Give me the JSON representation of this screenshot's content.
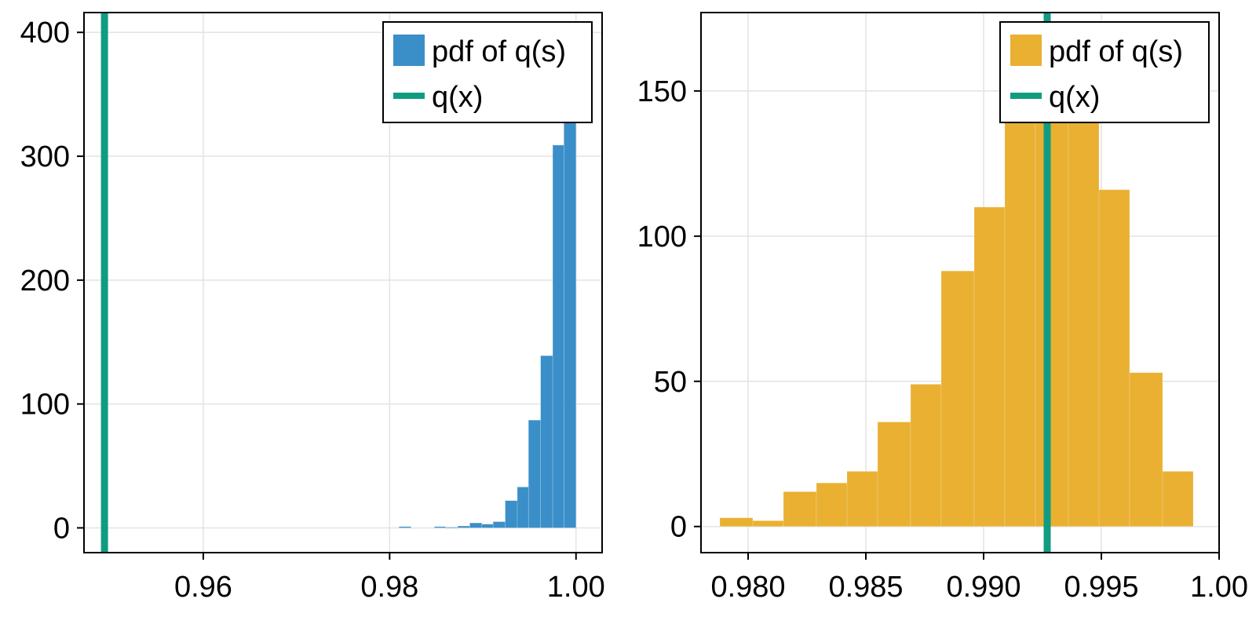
{
  "chart_data": [
    {
      "type": "histogram",
      "title": "",
      "xlabel": "",
      "ylabel": "",
      "xlim": [
        0.9472,
        1.0028
      ],
      "ylim": [
        -20,
        416
      ],
      "grid": true,
      "legend_position": "top-right",
      "x_ticks": [
        0.96,
        0.98,
        1.0
      ],
      "x_tick_labels": [
        "0.96",
        "0.98",
        "1.00"
      ],
      "y_ticks": [
        0,
        100,
        200,
        300,
        400
      ],
      "y_tick_labels": [
        "0",
        "100",
        "200",
        "300",
        "400"
      ],
      "bins": [
        {
          "x0": 0.981,
          "x1": 0.9823,
          "value": 1
        },
        {
          "x0": 0.9848,
          "x1": 0.986,
          "value": 1
        },
        {
          "x0": 0.986,
          "x1": 0.9873,
          "value": 0.5
        },
        {
          "x0": 0.9873,
          "x1": 0.9886,
          "value": 1.5
        },
        {
          "x0": 0.9886,
          "x1": 0.9899,
          "value": 4
        },
        {
          "x0": 0.9899,
          "x1": 0.9911,
          "value": 3
        },
        {
          "x0": 0.9911,
          "x1": 0.9924,
          "value": 5
        },
        {
          "x0": 0.9924,
          "x1": 0.9937,
          "value": 22
        },
        {
          "x0": 0.9937,
          "x1": 0.9949,
          "value": 33
        },
        {
          "x0": 0.9949,
          "x1": 0.9962,
          "value": 87
        },
        {
          "x0": 0.9962,
          "x1": 0.9975,
          "value": 139
        },
        {
          "x0": 0.9975,
          "x1": 0.9987,
          "value": 309
        },
        {
          "x0": 0.9987,
          "x1": 1.0,
          "value": 330
        }
      ],
      "vline": {
        "x": 0.9494
      },
      "series": [
        {
          "name": "pdf of q(s)",
          "kind": "hist",
          "color": "#3a8fc8"
        },
        {
          "name": "q(x)",
          "kind": "vline",
          "color": "#119c82"
        }
      ]
    },
    {
      "type": "histogram",
      "title": "",
      "xlabel": "",
      "ylabel": "",
      "xlim": [
        0.978,
        1.0
      ],
      "ylim": [
        -9,
        177
      ],
      "grid": true,
      "legend_position": "top-right",
      "x_ticks": [
        0.98,
        0.985,
        0.99,
        0.995,
        1.0
      ],
      "x_tick_labels": [
        "0.980",
        "0.985",
        "0.990",
        "0.995",
        "1.00"
      ],
      "y_ticks": [
        0,
        50,
        100,
        150
      ],
      "y_tick_labels": [
        "0",
        "50",
        "100",
        "150"
      ],
      "bins": [
        {
          "x0": 0.9788,
          "x1": 0.9802,
          "value": 3
        },
        {
          "x0": 0.9802,
          "x1": 0.9815,
          "value": 2
        },
        {
          "x0": 0.9815,
          "x1": 0.9829,
          "value": 12
        },
        {
          "x0": 0.9829,
          "x1": 0.9842,
          "value": 15
        },
        {
          "x0": 0.9842,
          "x1": 0.9855,
          "value": 19
        },
        {
          "x0": 0.9855,
          "x1": 0.9869,
          "value": 36
        },
        {
          "x0": 0.9869,
          "x1": 0.9882,
          "value": 49
        },
        {
          "x0": 0.9882,
          "x1": 0.9896,
          "value": 88
        },
        {
          "x0": 0.9896,
          "x1": 0.9909,
          "value": 110
        },
        {
          "x0": 0.9909,
          "x1": 0.9922,
          "value": 163
        },
        {
          "x0": 0.9922,
          "x1": 0.9936,
          "value": 162
        },
        {
          "x0": 0.9936,
          "x1": 0.9949,
          "value": 161
        },
        {
          "x0": 0.9949,
          "x1": 0.9962,
          "value": 116
        },
        {
          "x0": 0.9962,
          "x1": 0.9976,
          "value": 53
        },
        {
          "x0": 0.9976,
          "x1": 0.9989,
          "value": 19
        }
      ],
      "vline": {
        "x": 0.9927
      },
      "series": [
        {
          "name": "pdf of q(s)",
          "kind": "hist",
          "color": "#e9b032"
        },
        {
          "name": "q(x)",
          "kind": "vline",
          "color": "#119c82"
        }
      ]
    }
  ]
}
